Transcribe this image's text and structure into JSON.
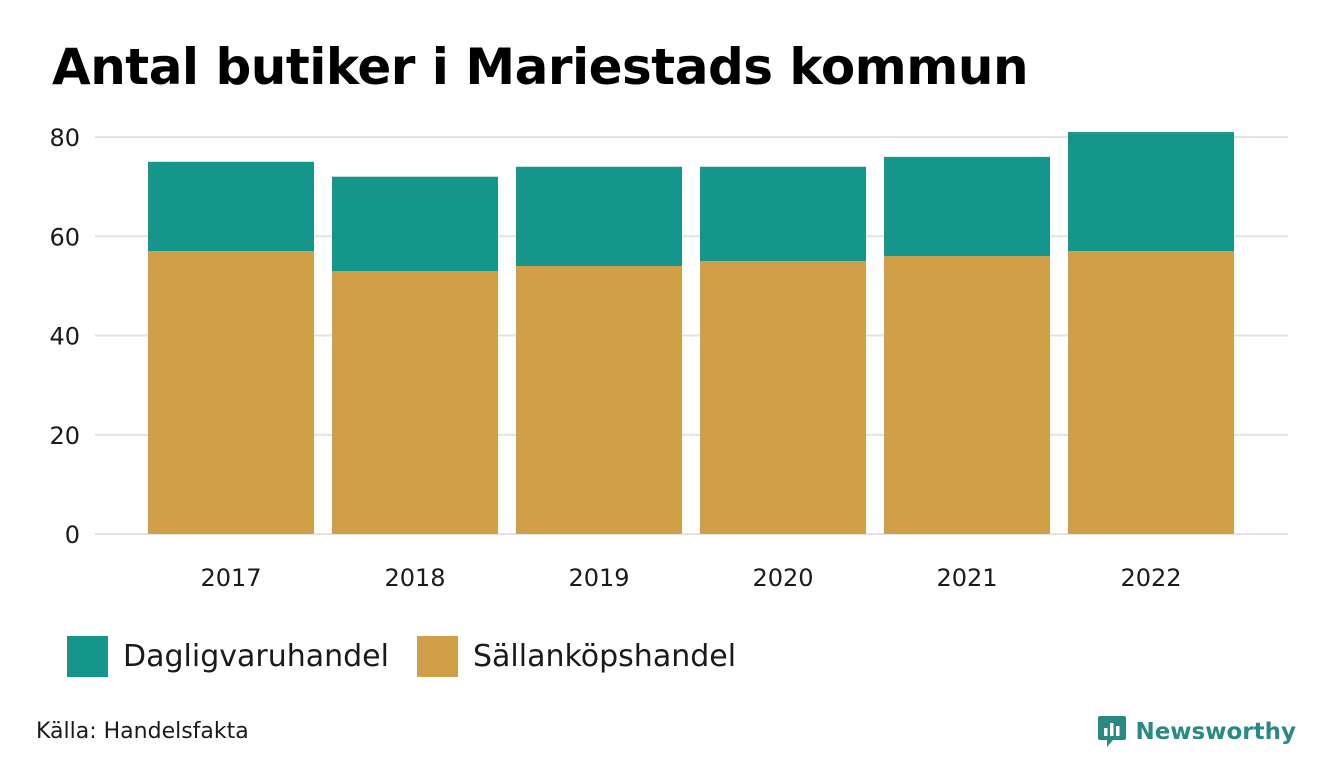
{
  "title": "Antal butiker i Mariestads kommun",
  "colors": {
    "dagligvaru": "#14968a",
    "sallankop": "#d19f48",
    "grid": "#e3e3e3",
    "brand": "#2a8a83"
  },
  "legend": {
    "items": [
      {
        "label": "Dagligvaruhandel",
        "color": "#14968a"
      },
      {
        "label": "Sällanköpshandel",
        "color": "#d19f48"
      }
    ]
  },
  "source": "Källa: Handelsfakta",
  "brand": {
    "name": "Newsworthy",
    "icon": "newsworthy-logo-icon"
  },
  "chart_data": {
    "type": "bar",
    "stacked": true,
    "title": "Antal butiker i Mariestads kommun",
    "xlabel": "",
    "ylabel": "",
    "categories": [
      "2017",
      "2018",
      "2019",
      "2020",
      "2021",
      "2022"
    ],
    "series": [
      {
        "name": "Sällanköpshandel",
        "color": "#d19f48",
        "values": [
          57,
          53,
          54,
          55,
          56,
          57
        ]
      },
      {
        "name": "Dagligvaruhandel",
        "color": "#14968a",
        "values": [
          18,
          19,
          20,
          19,
          20,
          24
        ]
      }
    ],
    "ylim": [
      0,
      80
    ],
    "yticks": [
      0,
      20,
      40,
      60,
      80
    ],
    "grid": true,
    "legend_position": "bottom-left"
  }
}
